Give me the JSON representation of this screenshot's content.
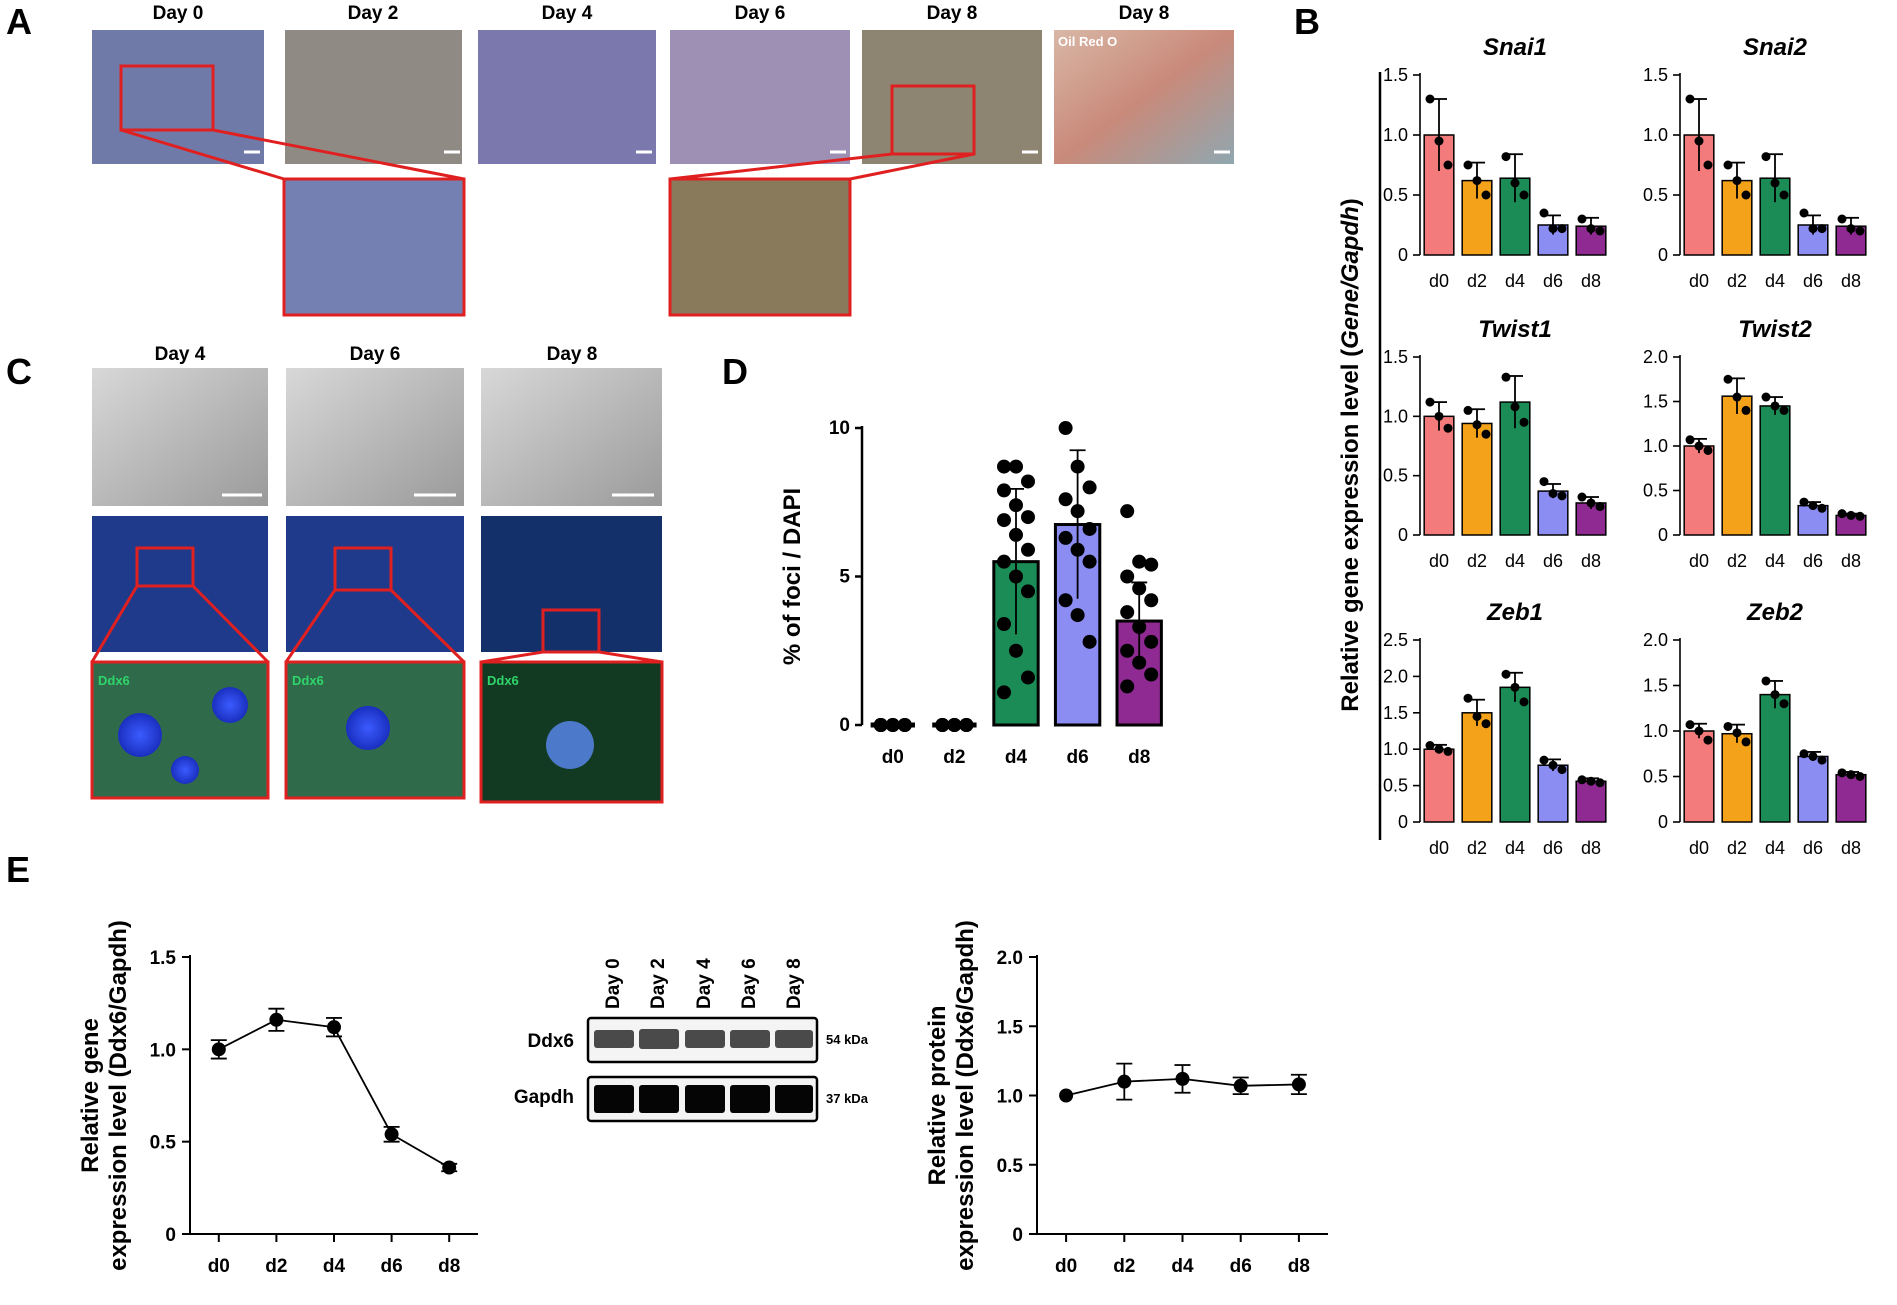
{
  "panels": {
    "A": {
      "letter": "A",
      "day_labels": [
        "Day 0",
        "Day 2",
        "Day 4",
        "Day 6",
        "Day 8",
        "Day 8"
      ],
      "stain_label": "Oil Red O"
    },
    "B": {
      "letter": "B",
      "ylabel_prefix": "Relative gene expression level (",
      "ylabel_italic": "Gene/Gapdh",
      "ylabel_suffix": ")"
    },
    "C": {
      "letter": "C",
      "day_labels": [
        "Day 4",
        "Day 6",
        "Day 8"
      ],
      "zoom_label": "Ddx6"
    },
    "D": {
      "letter": "D"
    },
    "E": {
      "letter": "E",
      "blot": {
        "lanes": [
          "Day 0",
          "Day 2",
          "Day 4",
          "Day 6",
          "Day 8"
        ],
        "rows": [
          {
            "protein": "Ddx6",
            "size": "54 kDa"
          },
          {
            "protein": "Gapdh",
            "size": "37 kDa"
          }
        ]
      }
    }
  },
  "colors": {
    "d0": "#f37b7b",
    "d2": "#f5a21b",
    "d4": "#1b8c55",
    "d6": "#8c8df2",
    "d8": "#8e2a91",
    "red_frame": "#e02020"
  },
  "chart_data": [
    {
      "id": "B-Snai1",
      "type": "bar",
      "title": "Snai1",
      "categories": [
        "d0",
        "d2",
        "d4",
        "d6",
        "d8"
      ],
      "values": [
        1.0,
        0.62,
        0.64,
        0.25,
        0.24
      ],
      "errors": [
        0.3,
        0.15,
        0.2,
        0.08,
        0.07
      ],
      "points": [
        [
          1.3,
          0.95,
          0.75
        ],
        [
          0.75,
          0.62,
          0.5
        ],
        [
          0.82,
          0.6,
          0.5
        ],
        [
          0.35,
          0.22,
          0.22
        ],
        [
          0.3,
          0.22,
          0.2
        ]
      ],
      "ylim": [
        0,
        1.5
      ],
      "yticks": [
        0,
        0.5,
        1.0,
        1.5
      ],
      "ytick_labels": [
        "0",
        "0.5",
        "1.0",
        "1.5"
      ]
    },
    {
      "id": "B-Snai2",
      "type": "bar",
      "title": "Snai2",
      "categories": [
        "d0",
        "d2",
        "d4",
        "d6",
        "d8"
      ],
      "values": [
        1.0,
        0.62,
        0.64,
        0.25,
        0.24
      ],
      "errors": [
        0.3,
        0.15,
        0.2,
        0.08,
        0.07
      ],
      "points": [
        [
          1.3,
          0.95,
          0.75
        ],
        [
          0.75,
          0.62,
          0.5
        ],
        [
          0.82,
          0.6,
          0.5
        ],
        [
          0.35,
          0.22,
          0.22
        ],
        [
          0.3,
          0.22,
          0.2
        ]
      ],
      "ylim": [
        0,
        1.5
      ],
      "yticks": [
        0,
        0.5,
        1.0,
        1.5
      ],
      "ytick_labels": [
        "0",
        "0.5",
        "1.0",
        "1.5"
      ]
    },
    {
      "id": "B-Twist1",
      "type": "bar",
      "title": "Twist1",
      "categories": [
        "d0",
        "d2",
        "d4",
        "d6",
        "d8"
      ],
      "values": [
        1.0,
        0.94,
        1.12,
        0.37,
        0.27
      ],
      "errors": [
        0.12,
        0.12,
        0.22,
        0.06,
        0.05
      ],
      "points": [
        [
          1.12,
          1.0,
          0.9
        ],
        [
          1.05,
          0.93,
          0.85
        ],
        [
          1.33,
          1.08,
          0.95
        ],
        [
          0.45,
          0.35,
          0.33
        ],
        [
          0.32,
          0.27,
          0.24
        ]
      ],
      "ylim": [
        0,
        1.5
      ],
      "yticks": [
        0,
        0.5,
        1.0,
        1.5
      ],
      "ytick_labels": [
        "0",
        "0.5",
        "1.0",
        "1.5"
      ]
    },
    {
      "id": "B-Twist2",
      "type": "bar",
      "title": "Twist2",
      "categories": [
        "d0",
        "d2",
        "d4",
        "d6",
        "d8"
      ],
      "values": [
        1.0,
        1.56,
        1.45,
        0.33,
        0.22
      ],
      "errors": [
        0.08,
        0.2,
        0.1,
        0.04,
        0.02
      ],
      "points": [
        [
          1.07,
          1.0,
          0.95
        ],
        [
          1.75,
          1.55,
          1.4
        ],
        [
          1.55,
          1.45,
          1.4
        ],
        [
          0.37,
          0.33,
          0.3
        ],
        [
          0.24,
          0.22,
          0.21
        ]
      ],
      "ylim": [
        0,
        2.0
      ],
      "yticks": [
        0,
        0.5,
        1.0,
        1.5,
        2.0
      ],
      "ytick_labels": [
        "0",
        "0.5",
        "1.0",
        "1.5",
        "2.0"
      ]
    },
    {
      "id": "B-Zeb1",
      "type": "bar",
      "title": "Zeb1",
      "categories": [
        "d0",
        "d2",
        "d4",
        "d6",
        "d8"
      ],
      "values": [
        1.0,
        1.5,
        1.85,
        0.78,
        0.56
      ],
      "errors": [
        0.06,
        0.18,
        0.2,
        0.08,
        0.04
      ],
      "points": [
        [
          1.05,
          1.0,
          0.97
        ],
        [
          1.7,
          1.45,
          1.35
        ],
        [
          2.03,
          1.85,
          1.65
        ],
        [
          0.85,
          0.78,
          0.72
        ],
        [
          0.58,
          0.56,
          0.54
        ]
      ],
      "ylim": [
        0,
        2.5
      ],
      "yticks": [
        0,
        0.5,
        1.0,
        1.5,
        2.0,
        2.5
      ],
      "ytick_labels": [
        "0",
        "0.5",
        "1.0",
        "1.5",
        "2.0",
        "2.5"
      ]
    },
    {
      "id": "B-Zeb2",
      "type": "bar",
      "title": "Zeb2",
      "categories": [
        "d0",
        "d2",
        "d4",
        "d6",
        "d8"
      ],
      "values": [
        1.0,
        0.97,
        1.4,
        0.72,
        0.52
      ],
      "errors": [
        0.08,
        0.1,
        0.15,
        0.05,
        0.03
      ],
      "points": [
        [
          1.07,
          1.0,
          0.9
        ],
        [
          1.05,
          0.98,
          0.88
        ],
        [
          1.55,
          1.4,
          1.3
        ],
        [
          0.75,
          0.72,
          0.68
        ],
        [
          0.54,
          0.52,
          0.5
        ]
      ],
      "ylim": [
        0,
        2.0
      ],
      "yticks": [
        0,
        0.5,
        1.0,
        1.5,
        2.0
      ],
      "ytick_labels": [
        "0",
        "0.5",
        "1.0",
        "1.5",
        "2.0"
      ]
    },
    {
      "id": "D",
      "type": "bar",
      "ylabel": "% of foci / DAPI",
      "categories": [
        "d0",
        "d2",
        "d4",
        "d6",
        "d8"
      ],
      "values": [
        0.0,
        0.0,
        5.5,
        6.75,
        3.5
      ],
      "errors": [
        0.0,
        0.0,
        2.45,
        2.5,
        1.3
      ],
      "points": [
        [
          0,
          0,
          0,
          0,
          0,
          0,
          0,
          0,
          0,
          0
        ],
        [
          0,
          0,
          0,
          0,
          0,
          0,
          0,
          0,
          0,
          0
        ],
        [
          8.7,
          8.7,
          8.2,
          7.9,
          7.4,
          7.0,
          6.9,
          6.4,
          5.9,
          5.5,
          5.0,
          4.5,
          3.4,
          2.5,
          1.6,
          1.1
        ],
        [
          10.0,
          8.7,
          8.0,
          7.6,
          7.2,
          6.6,
          6.3,
          5.9,
          5.5,
          4.2,
          3.7,
          2.8
        ],
        [
          7.2,
          5.5,
          5.4,
          5.0,
          4.6,
          4.2,
          3.8,
          3.3,
          2.8,
          2.5,
          2.1,
          1.7,
          1.3
        ]
      ],
      "ylim": [
        0,
        10
      ],
      "yticks": [
        0,
        5,
        10
      ],
      "ytick_labels": [
        "0",
        "5",
        "10"
      ]
    },
    {
      "id": "E-gene",
      "type": "line",
      "ylabel": [
        "Relative gene",
        "expression level (Ddx6/Gapdh)"
      ],
      "categories": [
        "d0",
        "d2",
        "d4",
        "d6",
        "d8"
      ],
      "values": [
        1.0,
        1.16,
        1.12,
        0.54,
        0.36
      ],
      "errors": [
        0.05,
        0.06,
        0.05,
        0.04,
        0.02
      ],
      "ylim": [
        0,
        1.5
      ],
      "yticks": [
        0,
        0.5,
        1.0,
        1.5
      ],
      "ytick_labels": [
        "0",
        "0.5",
        "1.0",
        "1.5"
      ]
    },
    {
      "id": "E-protein",
      "type": "line",
      "ylabel": [
        "Relative protein",
        "expression level (Ddx6/Gapdh)"
      ],
      "categories": [
        "d0",
        "d2",
        "d4",
        "d6",
        "d8"
      ],
      "values": [
        1.0,
        1.1,
        1.12,
        1.07,
        1.08
      ],
      "errors": [
        0.0,
        0.13,
        0.1,
        0.06,
        0.07
      ],
      "ylim": [
        0,
        2.0
      ],
      "yticks": [
        0,
        0.5,
        1.0,
        1.5,
        2.0
      ],
      "ytick_labels": [
        "0",
        "0.5",
        "1.0",
        "1.5",
        "2.0"
      ]
    }
  ]
}
